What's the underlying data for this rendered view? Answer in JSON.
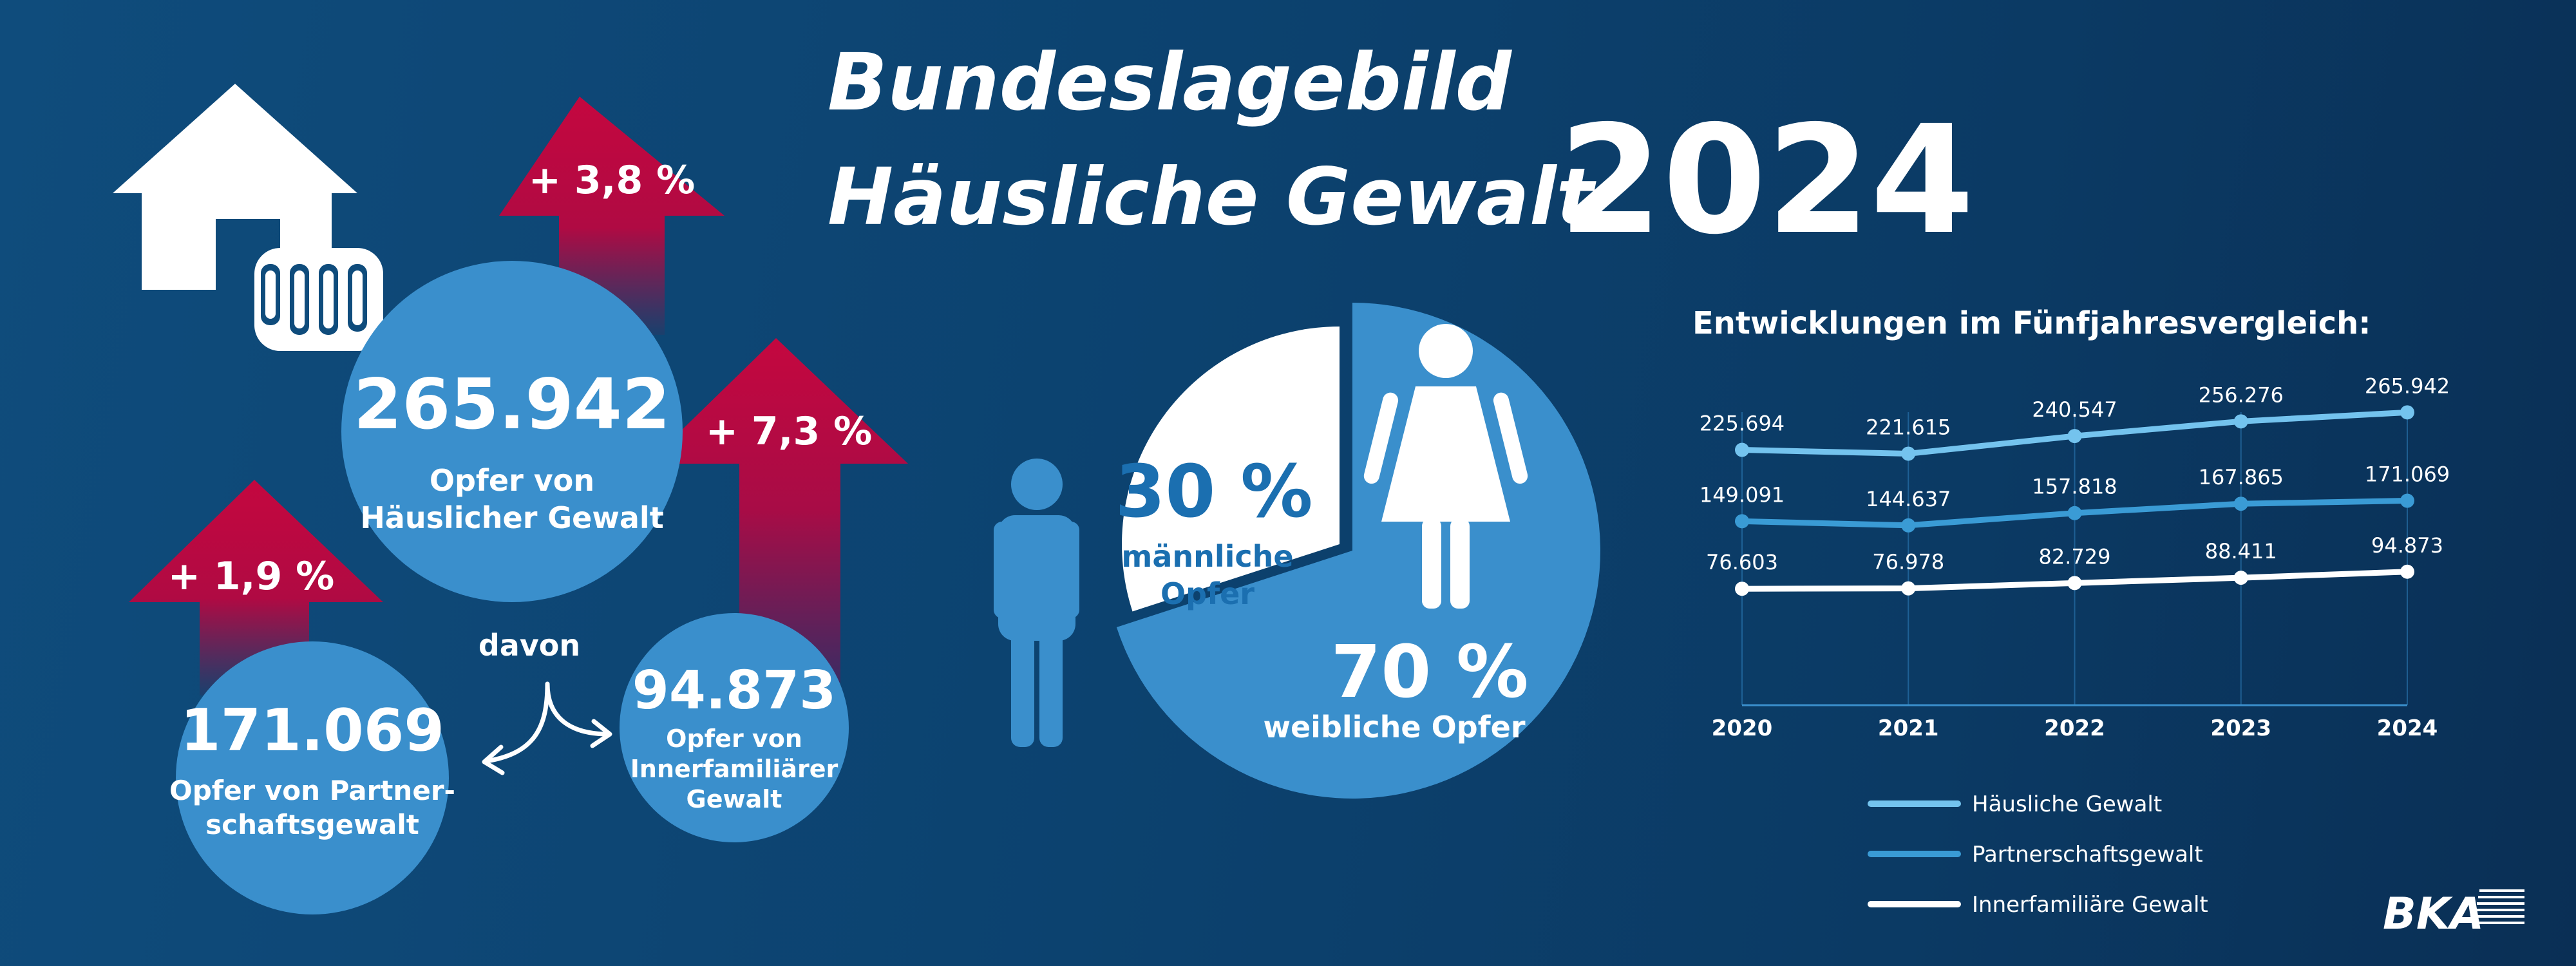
{
  "title": {
    "line1": "Bundeslagebild",
    "line2": "Häusliche Gewalt",
    "year": "2024"
  },
  "stats": {
    "total": {
      "value": "265.942",
      "label_line1": "Opfer von",
      "label_line2": "Häuslicher Gewalt",
      "change": "+ 3,8 %"
    },
    "connector": "davon",
    "partner": {
      "value": "171.069",
      "label_line1": "Opfer von Partner-",
      "label_line2": "schaftsgewalt",
      "change": "+ 1,9 %"
    },
    "family": {
      "value": "94.873",
      "label_line1": "Opfer von",
      "label_line2": "Innerfamiliärer",
      "label_line3": "Gewalt",
      "change": "+ 7,3 %"
    }
  },
  "gender": {
    "male_percent": "30 %",
    "male_line1": "männliche",
    "male_line2": "Opfer",
    "female_percent": "70 %",
    "female_label": "weibliche Opfer",
    "male_share": 0.3,
    "female_share": 0.7
  },
  "chart_data": {
    "type": "line",
    "title": "Entwicklungen im Fünfjahresvergleich:",
    "x": [
      "2020",
      "2021",
      "2022",
      "2023",
      "2024"
    ],
    "series": [
      {
        "name": "Häusliche Gewalt",
        "values": [
          225694,
          221615,
          240547,
          256276,
          265942
        ],
        "labels": [
          "225.694",
          "221.615",
          "240.547",
          "256.276",
          "265.942"
        ],
        "color": "#74c3ee"
      },
      {
        "name": "Partnerschaftsgewalt",
        "values": [
          149091,
          144637,
          157818,
          167865,
          171069
        ],
        "labels": [
          "149.091",
          "144.637",
          "157.818",
          "167.865",
          "171.069"
        ],
        "color": "#3a9bd5"
      },
      {
        "name": "Innerfamiliäre Gewalt",
        "values": [
          76603,
          76978,
          82729,
          88411,
          94873
        ],
        "labels": [
          "76.603",
          "76.978",
          "82.729",
          "88.411",
          "94.873"
        ],
        "color": "#ffffff"
      }
    ],
    "ylim": [
      0,
      280000
    ],
    "grid": "vertical",
    "legend": "bottom"
  },
  "logo": "BKA",
  "colors": {
    "circle_blue": "#3a8fcc",
    "arrow_red": "#c4073f",
    "pie_blue": "#3a8fcc",
    "pie_white": "#ffffff",
    "person_blue": "#3a8fcc"
  }
}
